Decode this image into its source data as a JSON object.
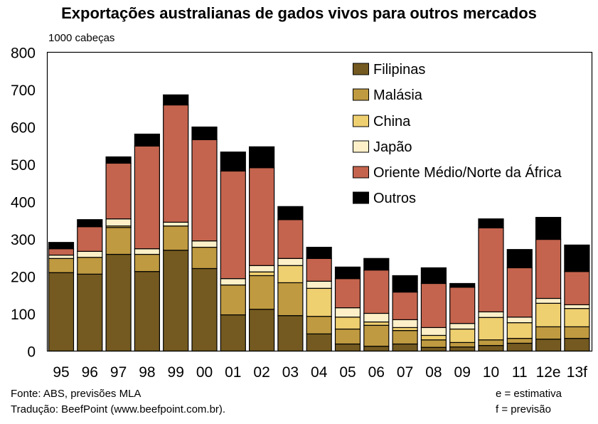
{
  "chart_data": {
    "type": "bar",
    "stacked": true,
    "title": "Exportações australianas de gados vivos para outros mercados",
    "ylabel": "1000 cabeças",
    "xlabel": "",
    "ylim": [
      0,
      800
    ],
    "yticks": [
      "0",
      "100",
      "200",
      "300",
      "400",
      "500",
      "600",
      "700",
      "800"
    ],
    "grid": false,
    "legend_position": "top-right",
    "categories": [
      "95",
      "96",
      "97",
      "98",
      "99",
      "00",
      "01",
      "02",
      "03",
      "04",
      "05",
      "06",
      "07",
      "08",
      "09",
      "10",
      "11",
      "12e",
      "13f"
    ],
    "series": [
      {
        "name": "Filipinas",
        "color": "#745a20",
        "values": [
          210,
          206,
          259,
          213,
          270,
          221,
          97,
          112,
          95,
          46,
          19,
          13,
          19,
          10,
          11,
          15,
          21,
          32,
          34
        ]
      },
      {
        "name": "Malásia",
        "color": "#bf9a40",
        "values": [
          38,
          45,
          72,
          46,
          65,
          57,
          80,
          90,
          88,
          47,
          40,
          56,
          36,
          20,
          12,
          15,
          13,
          33,
          31
        ]
      },
      {
        "name": "China",
        "color": "#efd070",
        "values": [
          0,
          0,
          4,
          0,
          0,
          0,
          0,
          10,
          46,
          75,
          32,
          9,
          8,
          12,
          36,
          60,
          42,
          63,
          49
        ]
      },
      {
        "name": "Japão",
        "color": "#fdf0c8",
        "values": [
          9,
          16,
          19,
          15,
          10,
          17,
          17,
          17,
          19,
          19,
          25,
          23,
          21,
          21,
          15,
          15,
          15,
          13,
          10
        ]
      },
      {
        "name": "Oriente Médio/Norte da África",
        "color": "#c4644e",
        "values": [
          17,
          66,
          149,
          275,
          314,
          271,
          288,
          262,
          104,
          61,
          78,
          116,
          74,
          118,
          97,
          225,
          132,
          158,
          89
        ]
      },
      {
        "name": "Outros",
        "color": "#000000",
        "values": [
          17,
          19,
          17,
          32,
          27,
          34,
          51,
          56,
          35,
          30,
          31,
          31,
          44,
          42,
          10,
          24,
          49,
          59,
          71
        ]
      }
    ]
  },
  "footer": {
    "source": "Fonte: ABS, previsões MLA",
    "translation": "Tradução: BeefPoint (www.beefpoint.com.br).",
    "note_e": "e = estimativa",
    "note_f": "f = previsão"
  }
}
